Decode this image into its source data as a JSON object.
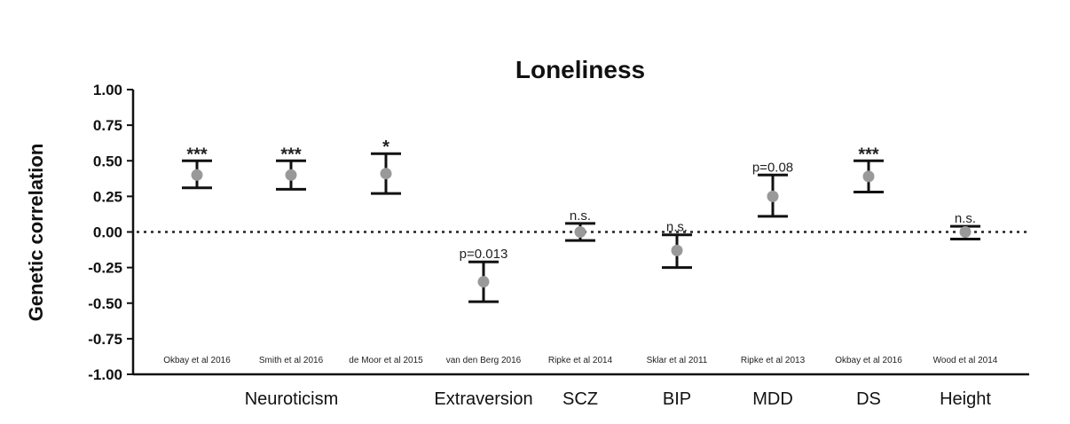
{
  "chart_data": {
    "type": "scatter",
    "title": "Loneliness",
    "ylabel": "Genetic correlation",
    "xlabel": "",
    "ylim": [
      -1.0,
      1.0
    ],
    "yticks": [
      "1.00",
      "0.75",
      "0.50",
      "0.25",
      "0.00",
      "-0.25",
      "-0.50",
      "-0.75",
      "-1.00"
    ],
    "reference_line": 0,
    "grid": false,
    "categories": [
      "Okbay et al 2016",
      "Smith et al 2016",
      "de Moor et al 2015",
      "van den Berg 2016",
      "Ripke et al 2014",
      "Sklar et al 2011",
      "Ripke et al 2013",
      "Okbay et al 2016",
      "Wood et al 2014"
    ],
    "values": [
      0.4,
      0.4,
      0.41,
      -0.35,
      0.0,
      -0.13,
      0.25,
      0.39,
      0.0
    ],
    "lower": [
      0.31,
      0.3,
      0.27,
      -0.49,
      -0.06,
      -0.25,
      0.11,
      0.28,
      -0.05
    ],
    "upper": [
      0.5,
      0.5,
      0.55,
      -0.21,
      0.06,
      -0.02,
      0.4,
      0.5,
      0.04
    ],
    "annotations": [
      "***",
      "***",
      "*",
      "p=0.013",
      "n.s.",
      "n.s.",
      "p=0.08",
      "***",
      "n.s."
    ],
    "groups": [
      {
        "label": "Neuroticism",
        "from": 0,
        "to": 2
      },
      {
        "label": "Extraversion",
        "from": 3,
        "to": 3
      },
      {
        "label": "SCZ",
        "from": 4,
        "to": 4
      },
      {
        "label": "BIP",
        "from": 5,
        "to": 5
      },
      {
        "label": "MDD",
        "from": 6,
        "to": 6
      },
      {
        "label": "DS",
        "from": 7,
        "to": 7
      },
      {
        "label": "Height",
        "from": 8,
        "to": 8
      }
    ],
    "colors": {
      "point": "#999999",
      "errorbar": "#111111",
      "axis": "#111111"
    }
  }
}
